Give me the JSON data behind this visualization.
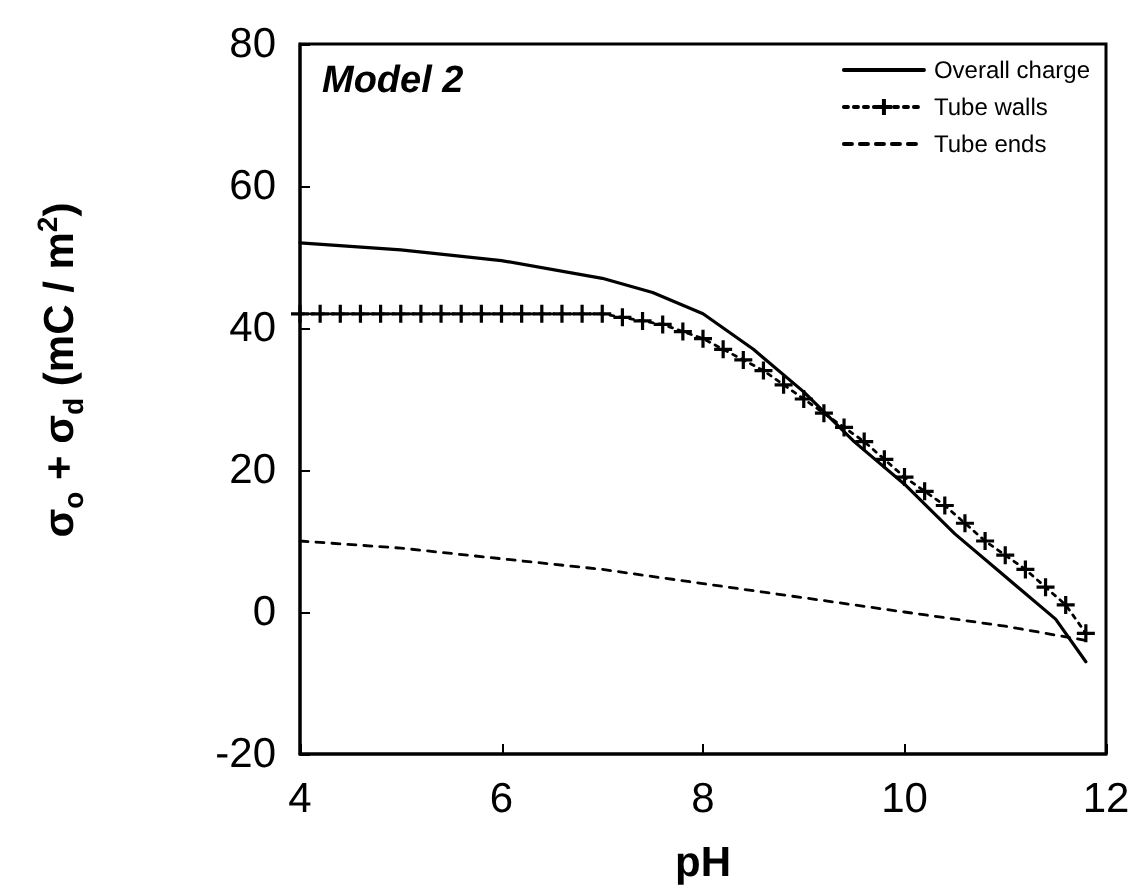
{
  "chart_data": {
    "type": "line",
    "title": "Model 2",
    "xlabel": "pH",
    "ylabel": "σ$_{o}$ + σ$_{d}$ (mC / m$^{2}$)",
    "xlim": [
      4,
      12
    ],
    "xticks": [
      4,
      6,
      8,
      10,
      12
    ],
    "ylim": [
      -20,
      80
    ],
    "yticks": [
      -20,
      0,
      20,
      40,
      60,
      80
    ],
    "grid": false,
    "legend": "top right",
    "series": [
      {
        "name": "Overall charge",
        "color": "#000000",
        "line_style": "solid",
        "marker": "none",
        "x": [
          4,
          5,
          6,
          7,
          7.5,
          8,
          8.5,
          9,
          9.5,
          10,
          10.5,
          11,
          11.5,
          11.8
        ],
        "values": [
          52,
          51,
          49.5,
          47,
          45,
          42,
          37,
          31,
          24,
          18,
          11,
          5,
          -1,
          -7
        ]
      },
      {
        "name": "Tube walls",
        "color": "#000000",
        "line_style": "dotted",
        "marker": "cross",
        "x": [
          4,
          4.2,
          4.4,
          4.6,
          4.8,
          5,
          5.2,
          5.4,
          5.6,
          5.8,
          6,
          6.2,
          6.4,
          6.6,
          6.8,
          7,
          7.2,
          7.4,
          7.6,
          7.8,
          8,
          8.2,
          8.4,
          8.6,
          8.8,
          9,
          9.2,
          9.4,
          9.6,
          9.8,
          10,
          10.2,
          10.4,
          10.6,
          10.8,
          11,
          11.2,
          11.4,
          11.6,
          11.8
        ],
        "values": [
          42,
          42,
          42,
          42,
          42,
          42,
          42,
          42,
          42,
          42,
          42,
          42,
          42,
          42,
          42,
          42,
          41.5,
          41,
          40.5,
          39.5,
          38.5,
          37,
          35.5,
          34,
          32,
          30,
          28,
          26,
          24,
          21.5,
          19,
          17,
          15,
          12.5,
          10,
          8,
          6,
          3.5,
          1,
          -3
        ]
      },
      {
        "name": "Tube ends",
        "color": "#000000",
        "line_style": "dashed",
        "marker": "none",
        "x": [
          4,
          5,
          6,
          7,
          8,
          9,
          10,
          11,
          11.8
        ],
        "values": [
          10,
          9,
          7.5,
          6,
          4,
          2,
          0,
          -2,
          -4
        ]
      }
    ]
  }
}
